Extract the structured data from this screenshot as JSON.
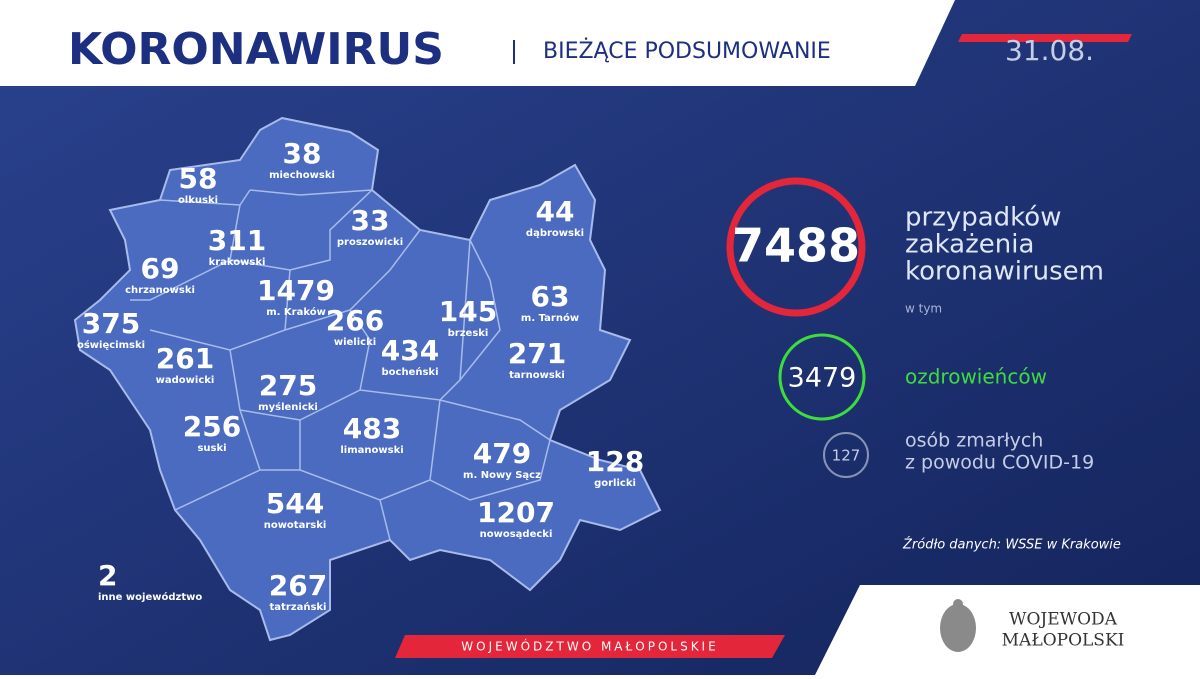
{
  "header": {
    "title": "KORONAWIRUS",
    "subtitle": "BIEŻĄCE PODSUMOWANIE",
    "date": "31.08."
  },
  "districts": [
    {
      "value": 58,
      "name": "olkuski"
    },
    {
      "value": 38,
      "name": "miechowski"
    },
    {
      "value": 33,
      "name": "proszowicki"
    },
    {
      "value": 311,
      "name": "krakowski"
    },
    {
      "value": 69,
      "name": "chrzanowski"
    },
    {
      "value": 1479,
      "name": "m. Kraków"
    },
    {
      "value": 375,
      "name": "oświęcimski"
    },
    {
      "value": 266,
      "name": "wielicki"
    },
    {
      "value": 434,
      "name": "bocheński"
    },
    {
      "value": 145,
      "name": "brzeski"
    },
    {
      "value": 44,
      "name": "dąbrowski"
    },
    {
      "value": 63,
      "name": "m. Tarnów"
    },
    {
      "value": 271,
      "name": "tarnowski"
    },
    {
      "value": 261,
      "name": "wadowicki"
    },
    {
      "value": 275,
      "name": "myślenicki"
    },
    {
      "value": 256,
      "name": "suski"
    },
    {
      "value": 483,
      "name": "limanowski"
    },
    {
      "value": 479,
      "name": "m. Nowy Sącz"
    },
    {
      "value": 128,
      "name": "gorlicki"
    },
    {
      "value": 544,
      "name": "nowotarski"
    },
    {
      "value": 1207,
      "name": "nowosądecki"
    },
    {
      "value": 267,
      "name": "tatrzański"
    },
    {
      "value": 2,
      "name": "inne województwo"
    }
  ],
  "summary": {
    "total": 7488,
    "total_label": [
      "przypadków",
      "zakażenia",
      "koronawirusem"
    ],
    "including": "w tym",
    "recovered": 3479,
    "recovered_label": "ozdrowieńców",
    "deaths": 127,
    "deaths_label": [
      "osób zmarłych",
      "z powodu COVID-19"
    ],
    "source": "Źródło danych: WSSE w Krakowie"
  },
  "footer": {
    "region": "WOJEWÓDZTWO MAŁOPOLSKIE",
    "logo": [
      "WOJEWODA",
      "MAŁOPOLSKI"
    ]
  }
}
